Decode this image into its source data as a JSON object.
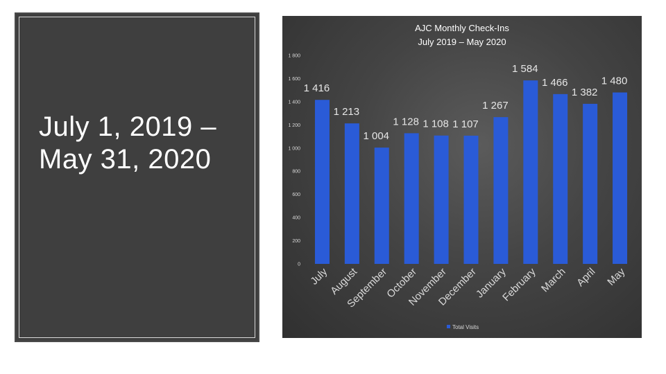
{
  "slide": {
    "heading_line1": "July 1, 2019 –",
    "heading_line2": "May 31, 2020"
  },
  "colors": {
    "bar": "#2a5bd7",
    "panel_bg": "#3f3f3f",
    "chart_bg": "#444444"
  },
  "chart_data": {
    "type": "bar",
    "title": "AJC Monthly Check-Ins",
    "subtitle": "July 2019 – May 2020",
    "xlabel": "",
    "ylabel": "",
    "categories": [
      "July",
      "August",
      "September",
      "October",
      "November",
      "December",
      "January",
      "February",
      "March",
      "April",
      "May"
    ],
    "series": [
      {
        "name": "Total Visits",
        "values": [
          1416,
          1213,
          1004,
          1128,
          1108,
          1107,
          1267,
          1584,
          1466,
          1382,
          1480
        ]
      }
    ],
    "data_labels": [
      "1 416",
      "1 213",
      "1 004",
      "1 128",
      "1 108",
      "1 107",
      "1 267",
      "1 584",
      "1 466",
      "1 382",
      "1 480"
    ],
    "ylim": [
      0,
      1800
    ],
    "yticks": [
      0,
      200,
      400,
      600,
      800,
      1000,
      1200,
      1400,
      1600,
      1800
    ],
    "ytick_labels": [
      "0",
      "200",
      "400",
      "600",
      "800",
      "1 000",
      "1 200",
      "1 400",
      "1 600",
      "1 800"
    ],
    "grid": false,
    "legend_position": "bottom"
  }
}
